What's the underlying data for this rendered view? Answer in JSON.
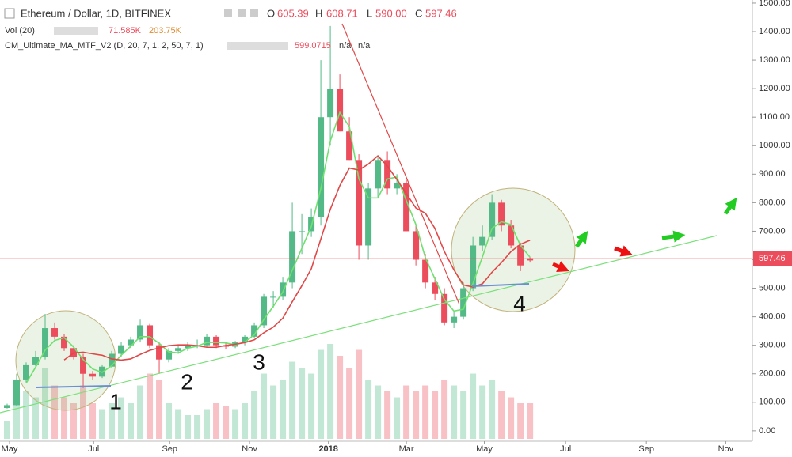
{
  "chart_data": {
    "type": "candlestick",
    "title": "Ethereum / Dollar, 1D, BITFINEX",
    "ohlc_labels": [
      "O",
      "H",
      "L",
      "C"
    ],
    "last_labels": [
      "605.39",
      "608.71",
      "590.00",
      "597.46"
    ],
    "indicators": [
      {
        "name": "Vol (20)",
        "values": [
          "71.585K",
          "203.75K"
        ]
      },
      {
        "name": "CM_Ultimate_MA_MTF_V2 (D, 20, 7, 1, 2, 50, 7, 1)",
        "values": [
          "599.0715",
          "n/a",
          "n/a"
        ]
      }
    ],
    "categories": [
      null,
      null,
      null,
      null,
      null,
      null,
      null,
      null,
      null,
      null,
      null,
      null,
      null,
      null,
      null,
      null,
      null,
      null,
      null,
      null,
      null,
      null,
      null,
      null,
      null,
      null,
      null,
      null,
      null,
      null,
      null,
      null,
      null,
      null,
      null,
      null,
      null,
      null,
      null,
      null,
      null,
      null,
      null,
      null,
      null,
      null,
      null,
      null,
      null,
      null,
      null,
      null,
      null,
      null,
      null,
      null
    ],
    "open": [
      80,
      90,
      180,
      230,
      260,
      360,
      330,
      290,
      260,
      200,
      190,
      225,
      270,
      300,
      320,
      370,
      300,
      250,
      280,
      290,
      300,
      300,
      330,
      300,
      295,
      310,
      330,
      370,
      470,
      470,
      520,
      700,
      700,
      750,
      1100,
      1200,
      1050,
      950,
      650,
      850,
      950,
      850,
      870,
      700,
      600,
      520,
      480,
      380,
      400,
      500,
      650,
      680,
      800,
      720,
      650,
      605.39
    ],
    "high": [
      95,
      200,
      240,
      280,
      410,
      380,
      340,
      300,
      270,
      210,
      230,
      280,
      310,
      330,
      390,
      375,
      310,
      290,
      300,
      310,
      320,
      340,
      335,
      310,
      315,
      335,
      380,
      480,
      490,
      540,
      800,
      760,
      780,
      1300,
      1420,
      1250,
      1100,
      970,
      870,
      960,
      980,
      900,
      880,
      720,
      620,
      540,
      500,
      420,
      520,
      680,
      720,
      830,
      810,
      740,
      660,
      608.71
    ],
    "low": [
      78,
      88,
      170,
      220,
      250,
      320,
      280,
      250,
      150,
      180,
      185,
      220,
      260,
      290,
      310,
      290,
      200,
      240,
      270,
      280,
      290,
      295,
      290,
      285,
      290,
      300,
      325,
      360,
      430,
      460,
      500,
      620,
      680,
      720,
      1000,
      1050,
      950,
      600,
      600,
      820,
      830,
      830,
      700,
      580,
      500,
      460,
      370,
      360,
      390,
      490,
      630,
      670,
      700,
      640,
      560,
      590
    ],
    "close": [
      90,
      180,
      230,
      260,
      360,
      330,
      290,
      260,
      200,
      190,
      225,
      270,
      300,
      320,
      370,
      300,
      250,
      280,
      290,
      300,
      300,
      330,
      300,
      295,
      310,
      330,
      370,
      470,
      470,
      520,
      700,
      700,
      750,
      1100,
      1200,
      1050,
      950,
      650,
      850,
      950,
      850,
      870,
      700,
      600,
      520,
      480,
      380,
      400,
      500,
      650,
      680,
      800,
      720,
      650,
      580,
      597.46
    ],
    "volume": [
      30,
      60,
      80,
      70,
      120,
      90,
      70,
      60,
      90,
      60,
      50,
      60,
      70,
      60,
      90,
      110,
      100,
      60,
      50,
      40,
      40,
      50,
      60,
      55,
      50,
      60,
      80,
      110,
      90,
      100,
      130,
      120,
      110,
      150,
      160,
      140,
      120,
      150,
      100,
      90,
      80,
      70,
      90,
      80,
      90,
      80,
      100,
      90,
      80,
      110,
      90,
      100,
      80,
      70,
      60,
      60
    ],
    "up_color": "#53b987",
    "down_color": "#eb4d5c",
    "ylim": [
      -42,
      1511
    ],
    "yticks": [
      {
        "value": 0,
        "label": "0.00"
      },
      {
        "value": 100,
        "label": "100.00"
      },
      {
        "value": 200,
        "label": "200.00"
      },
      {
        "value": 300,
        "label": "300.00"
      },
      {
        "value": 400,
        "label": "400.00"
      },
      {
        "value": 500,
        "label": "500.00"
      },
      {
        "value": 600,
        "label": "600.00"
      },
      {
        "value": 700,
        "label": "700.00"
      },
      {
        "value": 800,
        "label": "800.00"
      },
      {
        "value": 900,
        "label": "900.00"
      },
      {
        "value": 1000,
        "label": "1000.00"
      },
      {
        "value": 1100,
        "label": "1100.00"
      },
      {
        "value": 1200,
        "label": "1200.00"
      },
      {
        "value": 1300,
        "label": "1300.00"
      },
      {
        "value": 1400,
        "label": "1400.00"
      },
      {
        "value": 1500,
        "label": "1500.00"
      }
    ],
    "xlim": [
      -0.75,
      78.4
    ],
    "xticks": [
      {
        "value": 0.25,
        "label": "May"
      },
      {
        "value": 9.1,
        "label": "Jul"
      },
      {
        "value": 17.1,
        "label": "Sep"
      },
      {
        "value": 25.5,
        "label": "Nov"
      },
      {
        "value": 33.8,
        "label": "2018"
      },
      {
        "value": 42,
        "label": "Mar"
      },
      {
        "value": 50.2,
        "label": "May"
      },
      {
        "value": 58.75,
        "label": "Jul"
      },
      {
        "value": 67.25,
        "label": "Sep"
      },
      {
        "value": 75.6,
        "label": "Nov"
      }
    ],
    "annotations": [
      "1",
      "2",
      "3",
      "4"
    ]
  }
}
